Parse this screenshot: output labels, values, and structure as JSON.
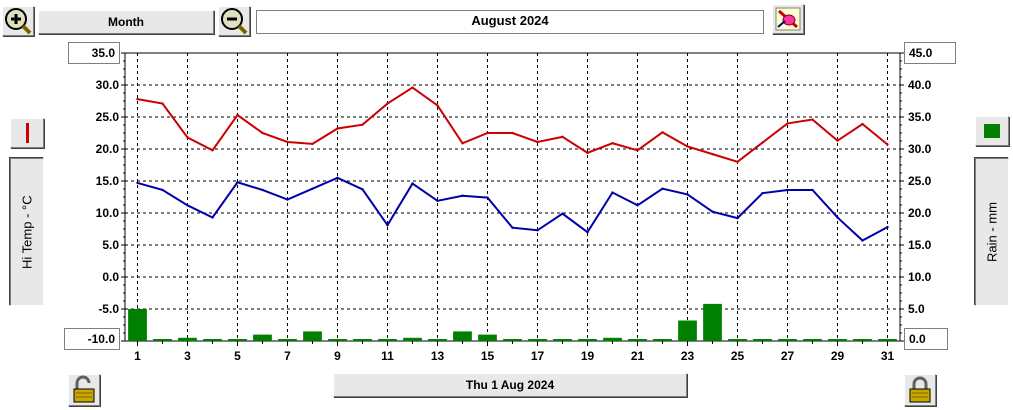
{
  "toolbar": {
    "period_label": "Month",
    "title": "August 2024",
    "zoom_in_icon": "magnifier-plus-icon",
    "zoom_out_icon": "magnifier-minus-icon",
    "tools_icon": "brush-tools-icon"
  },
  "left_axis": {
    "label": "Hi Temp - °C",
    "top_value": "35.0",
    "bottom_value": "-10.0",
    "series_color": "#cc0000"
  },
  "right_axis": {
    "label": "Rain - mm",
    "top_value": "45.0",
    "bottom_value": "0.0",
    "series_color": "#008000"
  },
  "footer": {
    "date_label": "Thu 1 Aug 2024",
    "lock_left_icon": "padlock-open-icon",
    "lock_right_icon": "padlock-closed-icon"
  },
  "chart_data": {
    "type": "line",
    "x": [
      1,
      2,
      3,
      4,
      5,
      6,
      7,
      8,
      9,
      10,
      11,
      12,
      13,
      14,
      15,
      16,
      17,
      18,
      19,
      20,
      21,
      22,
      23,
      24,
      25,
      26,
      27,
      28,
      29,
      30,
      31
    ],
    "xticks": [
      1,
      3,
      5,
      7,
      9,
      11,
      13,
      15,
      17,
      19,
      21,
      23,
      25,
      27,
      29,
      31
    ],
    "left_ylim": [
      -10,
      35
    ],
    "left_yticks": [
      "35.0",
      "30.0",
      "25.0",
      "20.0",
      "15.0",
      "10.0",
      "5.0",
      "0.0",
      "-5.0",
      "-10.0"
    ],
    "right_ylim": [
      0,
      45
    ],
    "right_yticks": [
      "45.0",
      "40.0",
      "35.0",
      "30.0",
      "25.0",
      "20.0",
      "15.0",
      "10.0",
      "5.0",
      "0.0"
    ],
    "grid": true,
    "series": [
      {
        "axis": "left",
        "color": "#cc0000",
        "values": [
          27.8,
          27.1,
          21.8,
          19.8,
          25.3,
          22.5,
          21.1,
          20.8,
          23.2,
          23.8,
          27.1,
          29.6,
          26.8,
          20.9,
          22.5,
          22.5,
          21.1,
          21.9,
          19.4,
          20.9,
          19.8,
          22.6,
          20.4,
          19.2,
          18.0,
          21.0,
          24.0,
          24.6,
          21.3,
          23.9,
          20.7
        ]
      },
      {
        "axis": "left",
        "color": "#0000aa",
        "values": [
          14.7,
          13.6,
          11.2,
          9.3,
          14.8,
          13.6,
          12.1,
          13.8,
          15.5,
          13.7,
          8.1,
          14.6,
          11.9,
          12.7,
          12.4,
          7.7,
          7.3,
          9.9,
          7.0,
          13.2,
          11.2,
          13.8,
          12.9,
          10.2,
          9.2,
          13.1,
          13.6,
          13.6,
          9.3,
          5.7,
          7.8
        ]
      },
      {
        "axis": "right",
        "type": "bar",
        "color": "#008000",
        "values": [
          5.0,
          0,
          0.5,
          0,
          0,
          1.0,
          0,
          1.5,
          0,
          0,
          0,
          0.5,
          0,
          1.5,
          1.0,
          0,
          0,
          0,
          0,
          0.5,
          0,
          0,
          3.2,
          5.8,
          0,
          0,
          0,
          0,
          0,
          0,
          0
        ]
      }
    ]
  }
}
